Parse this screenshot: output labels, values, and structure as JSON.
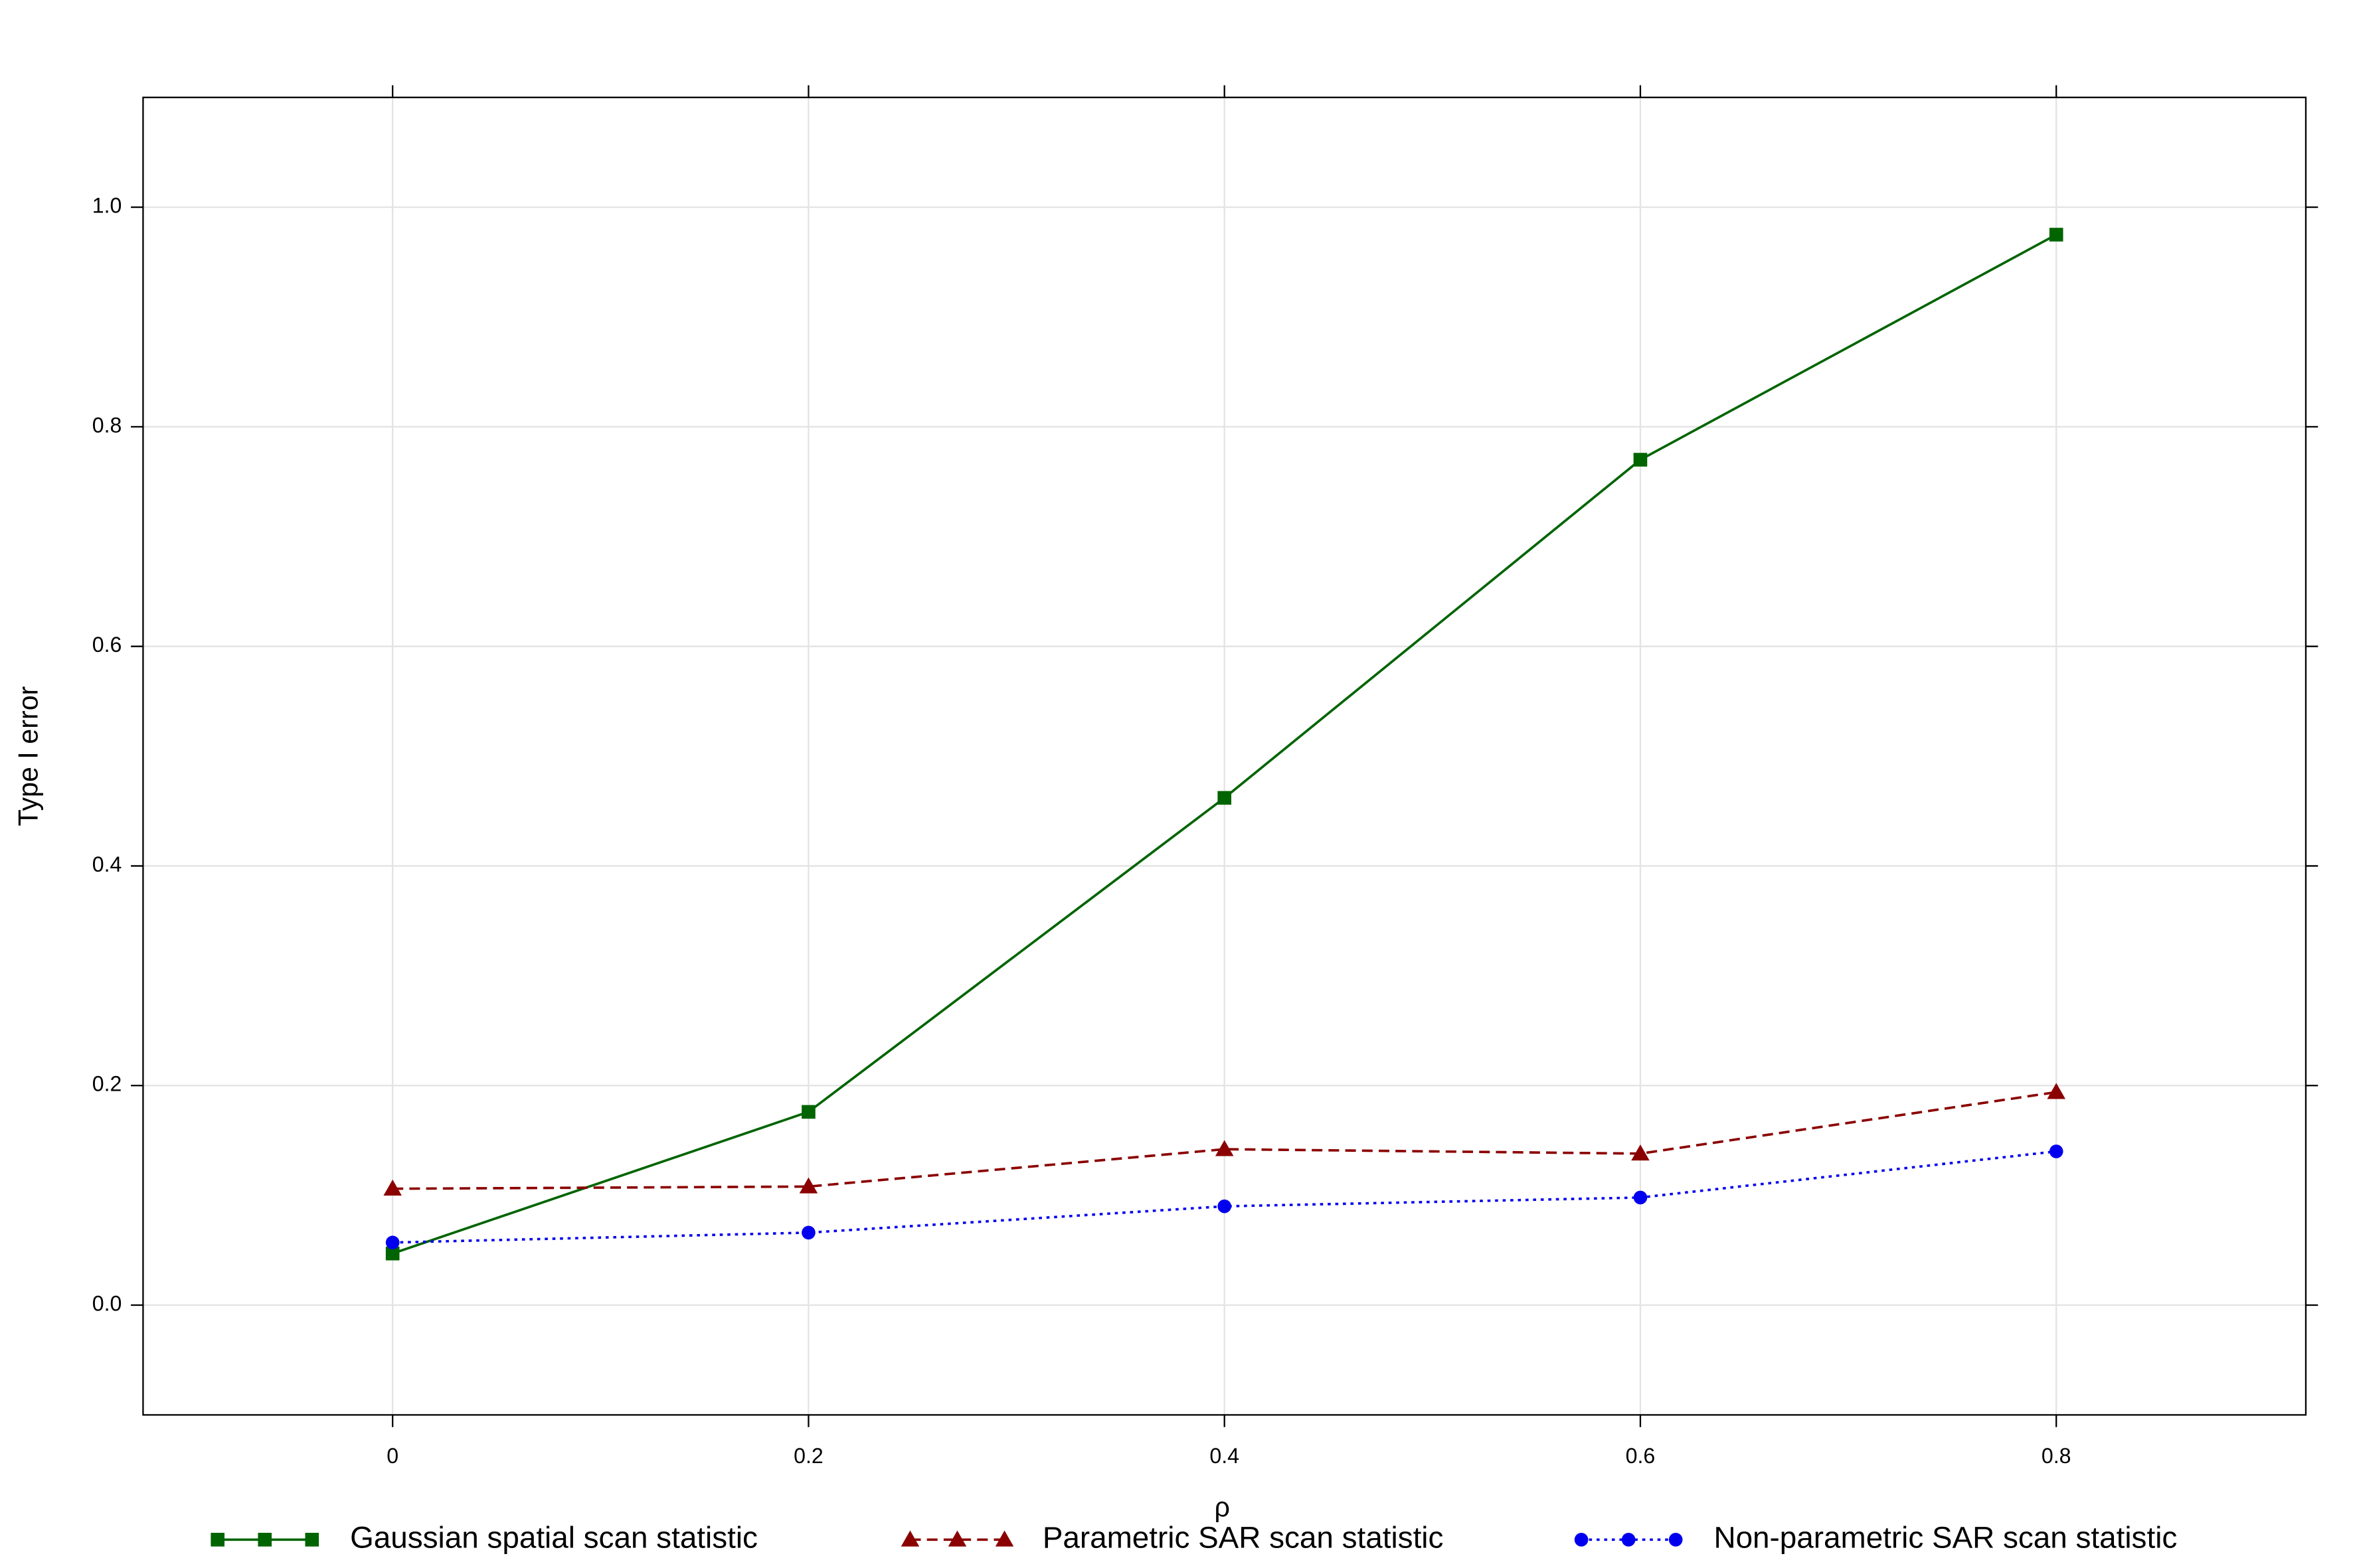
{
  "chart_data": {
    "type": "line",
    "x_label": "ρ",
    "y_label": "Type I error",
    "x": [
      0,
      0.2,
      0.4,
      0.6,
      0.8
    ],
    "xlim": [
      -0.12,
      0.92
    ],
    "xticks": [
      0,
      0.2,
      0.4,
      0.6,
      0.8
    ],
    "ylim": [
      -0.1,
      1.1
    ],
    "yticks": [
      {
        "value": 0,
        "label": "0.0"
      },
      0.2,
      0.4,
      0.6,
      0.8,
      {
        "value": 1,
        "label": "1.0"
      }
    ],
    "grid": true,
    "legend_position": "bottom",
    "series": [
      {
        "name": "Gaussian spatial  scan statistic",
        "color": "#006400",
        "line_style": "solid",
        "marker": "square",
        "values": [
          0.047,
          0.176,
          0.462,
          0.77,
          0.975
        ]
      },
      {
        "name": "Parametric SAR scan statistic",
        "color": "#8b0000",
        "line_style": "dashed",
        "marker": "triangle",
        "values": [
          0.106,
          0.108,
          0.142,
          0.138,
          0.194
        ]
      },
      {
        "name": "Non-parametric SAR scan statistic",
        "color": "#0000ee",
        "line_style": "dotted",
        "marker": "circle",
        "values": [
          0.057,
          0.066,
          0.09,
          0.098,
          0.14
        ]
      }
    ]
  }
}
